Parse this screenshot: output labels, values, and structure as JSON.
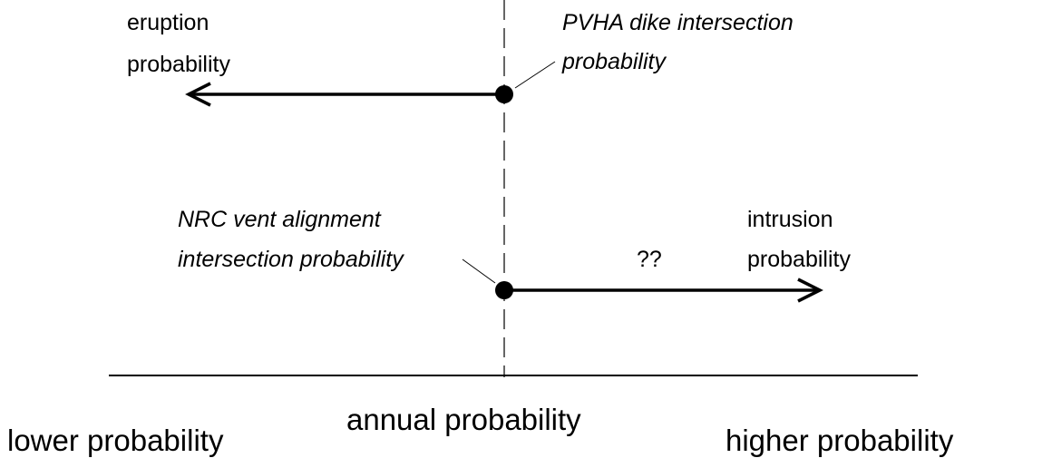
{
  "labels": {
    "eruption": [
      "eruption",
      "probability"
    ],
    "pvha": [
      "PVHA dike intersection",
      "probability"
    ],
    "nrc": [
      "NRC vent alignment",
      "intersection probability"
    ],
    "unknown": "??",
    "intrusion": [
      "intrusion",
      "probability"
    ]
  },
  "axis": {
    "left": "lower probability",
    "center": "annual probability",
    "right": "higher probability"
  }
}
